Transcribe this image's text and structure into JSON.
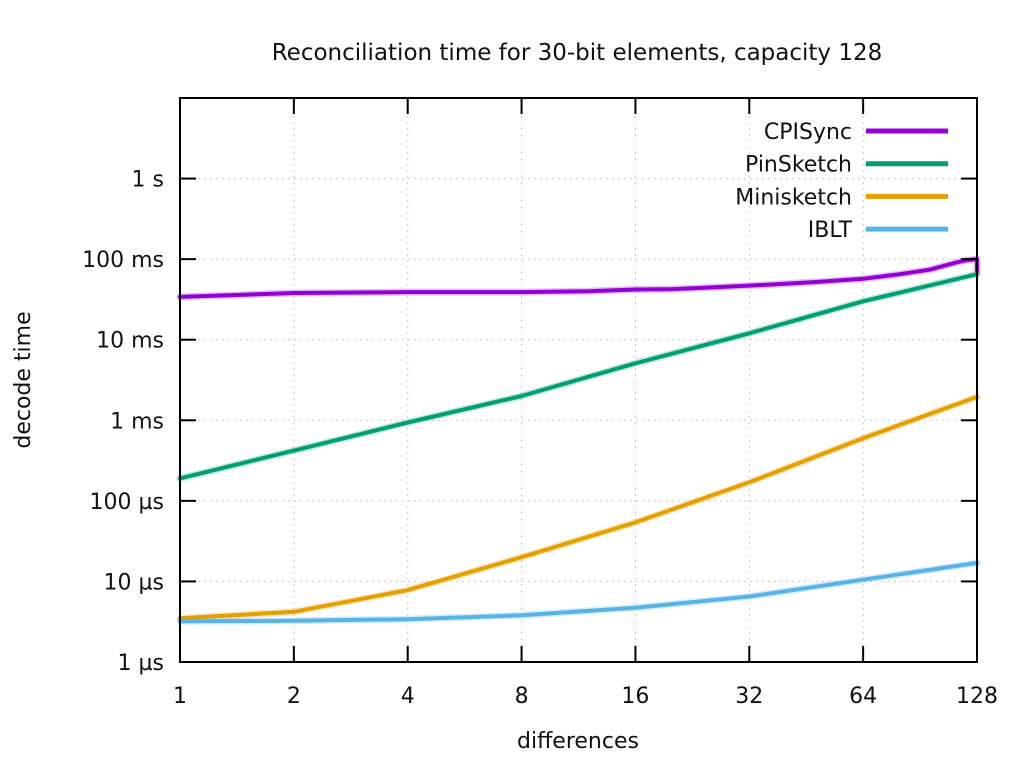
{
  "chart_data": {
    "type": "line",
    "title": "Reconciliation time for 30-bit elements, capacity 128",
    "xlabel": "differences",
    "ylabel": "decode time",
    "x_scale": "log2",
    "y_scale": "log10",
    "xlim": [
      1,
      128
    ],
    "ylim_seconds": [
      1e-06,
      10
    ],
    "grid": true,
    "legend_position": "top-right",
    "x_ticks": [
      {
        "value": 1,
        "label": "1"
      },
      {
        "value": 2,
        "label": "2"
      },
      {
        "value": 4,
        "label": "4"
      },
      {
        "value": 8,
        "label": "8"
      },
      {
        "value": 16,
        "label": "16"
      },
      {
        "value": 32,
        "label": "32"
      },
      {
        "value": 64,
        "label": "64"
      },
      {
        "value": 128,
        "label": "128"
      }
    ],
    "y_ticks": [
      {
        "seconds": 1e-06,
        "label": "1 µs"
      },
      {
        "seconds": 1e-05,
        "label": "10 µs"
      },
      {
        "seconds": 0.0001,
        "label": "100 µs"
      },
      {
        "seconds": 0.001,
        "label": "1 ms"
      },
      {
        "seconds": 0.01,
        "label": "10 ms"
      },
      {
        "seconds": 0.1,
        "label": "100 ms"
      },
      {
        "seconds": 1,
        "label": "1 s"
      }
    ],
    "series": [
      {
        "name": "CPISync",
        "color": "#9400d3",
        "points": [
          [
            1,
            0.034
          ],
          [
            2,
            0.038
          ],
          [
            3,
            0.0385
          ],
          [
            4,
            0.039
          ],
          [
            6,
            0.039
          ],
          [
            8,
            0.039
          ],
          [
            12,
            0.04
          ],
          [
            16,
            0.042
          ],
          [
            20,
            0.0425
          ],
          [
            24,
            0.044
          ],
          [
            32,
            0.047
          ],
          [
            40,
            0.0495
          ],
          [
            48,
            0.052
          ],
          [
            64,
            0.057
          ],
          [
            80,
            0.065
          ],
          [
            96,
            0.074
          ],
          [
            112,
            0.09
          ],
          [
            120,
            0.097
          ],
          [
            128,
            0.1
          ],
          [
            128,
            0.07
          ]
        ]
      },
      {
        "name": "PinSketch",
        "color": "#009e73",
        "points": [
          [
            1,
            0.00019
          ],
          [
            2,
            0.00042
          ],
          [
            4,
            0.00094
          ],
          [
            8,
            0.002
          ],
          [
            16,
            0.0051
          ],
          [
            32,
            0.012
          ],
          [
            64,
            0.03
          ],
          [
            128,
            0.065
          ]
        ]
      },
      {
        "name": "Minisketch",
        "color": "#e69f00",
        "points": [
          [
            1,
            3.5e-06
          ],
          [
            2,
            4.2e-06
          ],
          [
            4,
            7.8e-06
          ],
          [
            8,
            2e-05
          ],
          [
            16,
            5.4e-05
          ],
          [
            32,
            0.00017
          ],
          [
            64,
            0.0006
          ],
          [
            128,
            0.00195
          ]
        ]
      },
      {
        "name": "IBLT",
        "color": "#56b4e9",
        "points": [
          [
            1,
            3.2e-06
          ],
          [
            2,
            3.25e-06
          ],
          [
            4,
            3.4e-06
          ],
          [
            8,
            3.8e-06
          ],
          [
            16,
            4.7e-06
          ],
          [
            32,
            6.5e-06
          ],
          [
            64,
            1.05e-05
          ],
          [
            128,
            1.7e-05
          ]
        ]
      }
    ]
  }
}
